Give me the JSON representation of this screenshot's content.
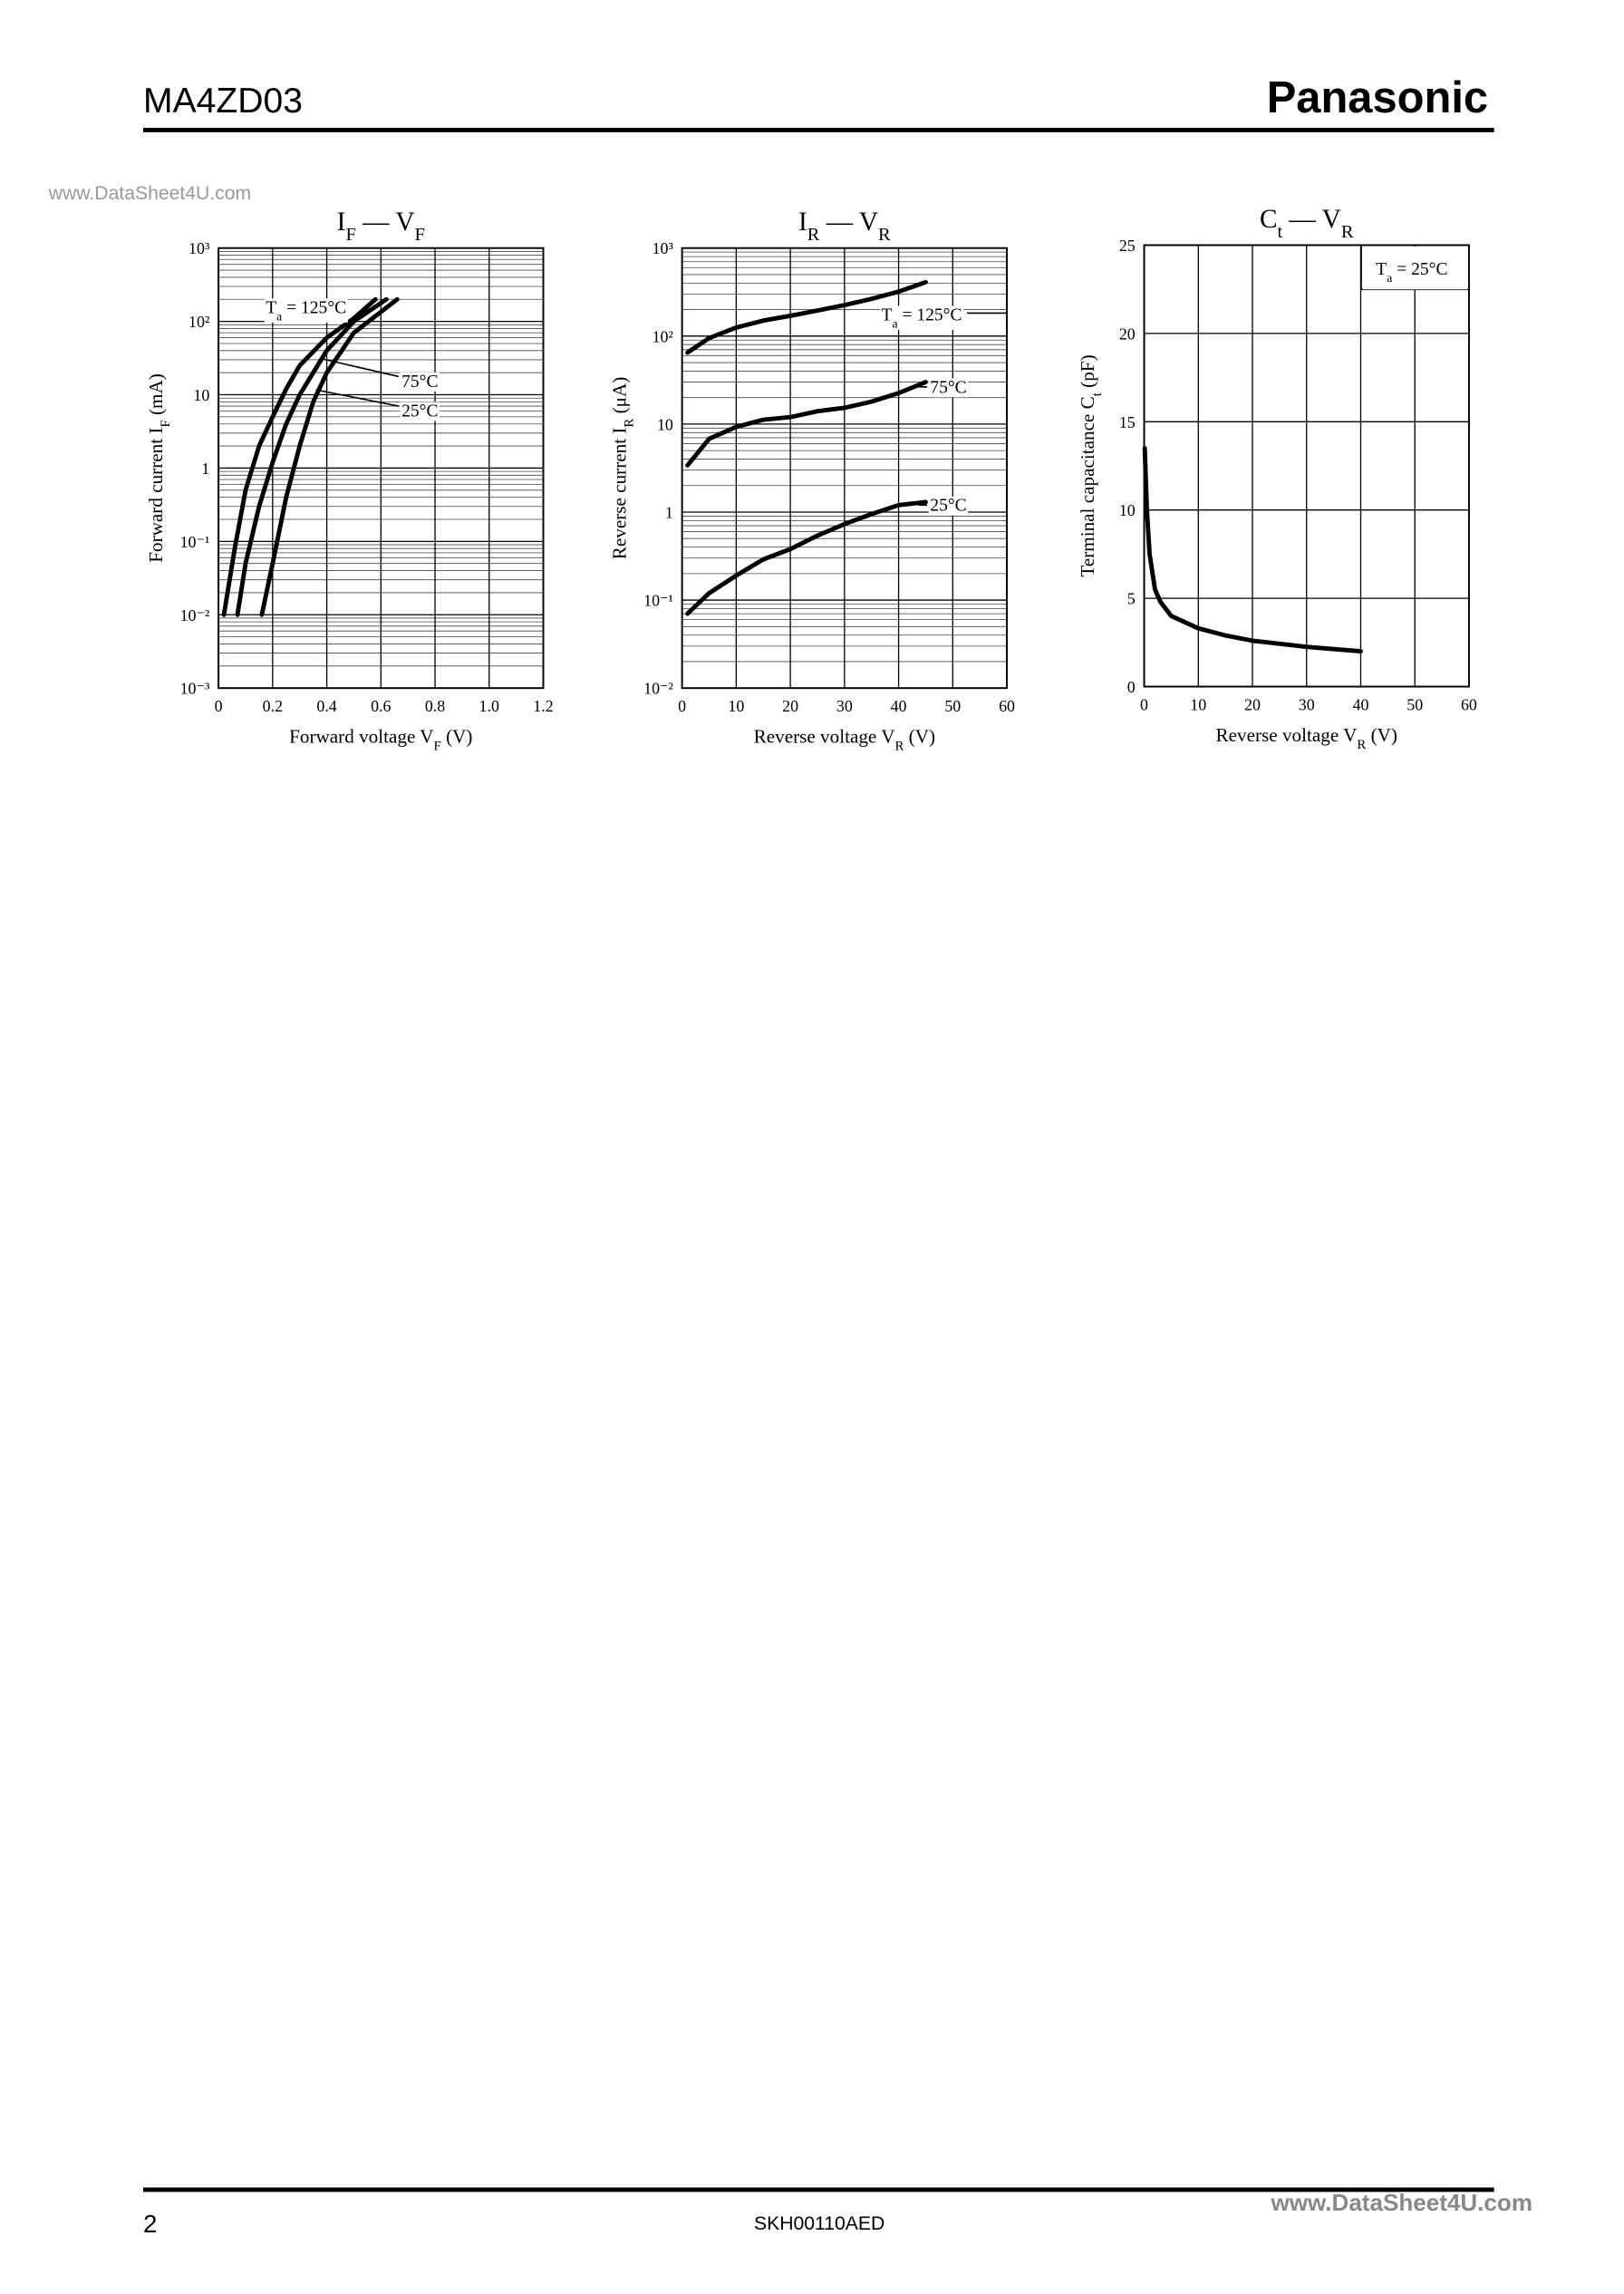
{
  "header": {
    "model": "MA4ZD03",
    "brand": "Panasonic",
    "watermark": "www.DataSheet4U.com"
  },
  "footer": {
    "page": "2",
    "code": "SKH00110AED",
    "watermark": "www.DataSheet4U.com"
  },
  "chart_data": [
    {
      "type": "line",
      "title": [
        "I",
        "F",
        " — V",
        "F"
      ],
      "x_label": [
        "Forward voltage  V",
        "F",
        "  (V)"
      ],
      "y_label": [
        "Forward current  I",
        "F",
        "  (mA)"
      ],
      "xlim": [
        0,
        1.2
      ],
      "xticks": [
        0,
        0.2,
        0.4,
        0.6,
        0.8,
        {
          "value": 1,
          "label": "1.0"
        },
        1.2
      ],
      "ylim": [
        0.001,
        1000
      ],
      "log_y": true,
      "grid": true,
      "yticks": [
        {
          "value": 0.001,
          "label": "10⁻³"
        },
        {
          "value": 0.01,
          "label": "10⁻²"
        },
        {
          "value": 0.1,
          "label": "10⁻¹"
        },
        1,
        10,
        {
          "value": 100,
          "label": "10²"
        },
        {
          "value": 1000,
          "label": "10³"
        }
      ],
      "series": [
        {
          "label": [
            "T",
            "a",
            " = 125°C"
          ],
          "color": "#000000",
          "x": [
            0.02,
            0.06,
            0.1,
            0.15,
            0.2,
            0.25,
            0.3,
            0.4,
            0.5,
            0.58
          ],
          "values": [
            0.01,
            0.08,
            0.5,
            2,
            5,
            12,
            25,
            60,
            110,
            200
          ]
        },
        {
          "label": [
            "75°C"
          ],
          "color": "#000000",
          "x": [
            0.07,
            0.1,
            0.15,
            0.2,
            0.25,
            0.3,
            0.4,
            0.5,
            0.62
          ],
          "values": [
            0.01,
            0.05,
            0.3,
            1.2,
            4,
            10,
            40,
            100,
            200
          ]
        },
        {
          "label": [
            "25°C"
          ],
          "color": "#000000",
          "x": [
            0.16,
            0.2,
            0.25,
            0.3,
            0.35,
            0.4,
            0.5,
            0.66
          ],
          "values": [
            0.01,
            0.05,
            0.4,
            2,
            8,
            20,
            70,
            200
          ]
        }
      ]
    },
    {
      "type": "line",
      "title": [
        "I",
        "R",
        " — V",
        "R"
      ],
      "x_label": [
        "Reverse voltage  V",
        "R",
        "  (V)"
      ],
      "y_label": [
        "Reverse current  I",
        "R",
        "  (μA)"
      ],
      "xlim": [
        0,
        60
      ],
      "xticks": [
        0,
        10,
        20,
        30,
        40,
        50,
        60
      ],
      "ylim": [
        0.01,
        1000
      ],
      "log_y": true,
      "grid": true,
      "yticks": [
        {
          "value": 0.01,
          "label": "10⁻²"
        },
        {
          "value": 0.1,
          "label": "10⁻¹"
        },
        1,
        10,
        {
          "value": 100,
          "label": "10²"
        },
        {
          "value": 1000,
          "label": "10³"
        }
      ],
      "series": [
        {
          "label": [
            "T",
            "a",
            " = 125°C"
          ],
          "color": "#000000",
          "x": [
            1,
            5,
            10,
            15,
            20,
            25,
            30,
            35,
            40,
            45
          ],
          "values": [
            65,
            95,
            125,
            150,
            170,
            195,
            225,
            265,
            320,
            410
          ]
        },
        {
          "label": [
            "75°C"
          ],
          "color": "#000000",
          "x": [
            1,
            5,
            10,
            15,
            20,
            25,
            30,
            35,
            40,
            45
          ],
          "values": [
            3.4,
            6.8,
            9.3,
            11.2,
            12,
            14,
            15.3,
            18,
            22.5,
            30
          ]
        },
        {
          "label": [
            "25°C"
          ],
          "color": "#000000",
          "x": [
            1,
            5,
            10,
            15,
            20,
            25,
            30,
            35,
            40,
            45
          ],
          "values": [
            0.07,
            0.12,
            0.19,
            0.29,
            0.38,
            0.54,
            0.73,
            0.95,
            1.2,
            1.3
          ]
        }
      ]
    },
    {
      "type": "line",
      "title": [
        "C",
        "t",
        " — V",
        "R"
      ],
      "x_label": [
        "Reverse voltage  V",
        "R",
        "  (V)"
      ],
      "y_label": [
        "Terminal capacitance  C",
        "t",
        "  (pF)"
      ],
      "xlim": [
        0,
        60
      ],
      "xticks": [
        0,
        10,
        20,
        30,
        40,
        50,
        60
      ],
      "ylim": [
        0,
        25
      ],
      "log_y": false,
      "grid": true,
      "yticks": [
        0,
        5,
        10,
        15,
        20,
        25
      ],
      "series": [
        {
          "label": [
            "T",
            "a",
            " = 25°C"
          ],
          "color": "#000000",
          "x": [
            0.1,
            0.5,
            1,
            2,
            3,
            5,
            10,
            15,
            20,
            30,
            40
          ],
          "values": [
            13.5,
            10,
            7.5,
            5.5,
            4.8,
            4,
            3.3,
            2.9,
            2.6,
            2.25,
            2
          ]
        }
      ]
    }
  ]
}
